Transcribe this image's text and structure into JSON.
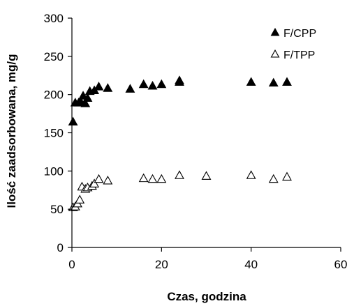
{
  "chart_data": {
    "type": "scatter",
    "title": "",
    "xlabel": "Czas, godzina",
    "ylabel": "Ilość zaadsorbowana, mg/g",
    "xlim": [
      0,
      60
    ],
    "ylim": [
      0,
      300
    ],
    "xticks": [
      "0",
      "20",
      "40",
      "60"
    ],
    "yticks": [
      "0",
      "50",
      "100",
      "150",
      "200",
      "250",
      "300"
    ],
    "grid": false,
    "legend_position": "top-right",
    "series": [
      {
        "name": "F/CPP",
        "marker": "filled-triangle",
        "color": "#000000",
        "points": [
          [
            0.25,
            164
          ],
          [
            0.75,
            189
          ],
          [
            1.5,
            189
          ],
          [
            2.0,
            190
          ],
          [
            2.5,
            198
          ],
          [
            3.0,
            188
          ],
          [
            3.5,
            195
          ],
          [
            4.0,
            204
          ],
          [
            5.0,
            205
          ],
          [
            6.0,
            210
          ],
          [
            8.0,
            208
          ],
          [
            13.0,
            207
          ],
          [
            16.0,
            213
          ],
          [
            18.0,
            211
          ],
          [
            20.0,
            213
          ],
          [
            24.0,
            218
          ],
          [
            24.0,
            216
          ],
          [
            40.0,
            216
          ],
          [
            45.0,
            215
          ],
          [
            48.0,
            216
          ]
        ]
      },
      {
        "name": "F/TPP",
        "marker": "open-triangle",
        "color": "#000000",
        "points": [
          [
            0.25,
            52
          ],
          [
            0.75,
            53
          ],
          [
            1.25,
            57
          ],
          [
            1.75,
            62
          ],
          [
            2.25,
            79
          ],
          [
            3.0,
            76
          ],
          [
            3.5,
            78
          ],
          [
            4.5,
            80
          ],
          [
            5.0,
            83
          ],
          [
            6.0,
            89
          ],
          [
            8.0,
            87
          ],
          [
            16.0,
            90
          ],
          [
            18.0,
            89
          ],
          [
            20.0,
            89
          ],
          [
            24.0,
            94
          ],
          [
            30.0,
            93
          ],
          [
            40.0,
            94
          ],
          [
            45.0,
            89
          ],
          [
            48.0,
            92
          ]
        ]
      }
    ]
  }
}
